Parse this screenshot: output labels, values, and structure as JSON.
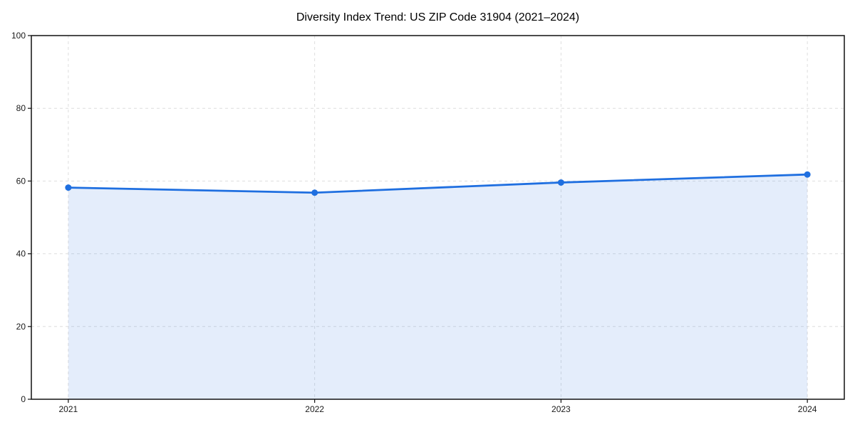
{
  "page": {
    "background": "#ffffff"
  },
  "chart_data": {
    "type": "line",
    "title": "Diversity Index Trend: US ZIP Code 31904 (2021–2024)",
    "x": [
      "2021",
      "2022",
      "2023",
      "2024"
    ],
    "series": [
      {
        "name": "Diversity Index",
        "values": [
          58.2,
          56.8,
          59.6,
          61.8
        ],
        "color": "#1f6fe0",
        "marker": "circle",
        "area_fill": true
      }
    ],
    "xlabel": "",
    "ylabel": "",
    "ylim": [
      0,
      100
    ],
    "yticks": [
      0,
      20,
      40,
      60,
      80,
      100
    ],
    "x_margin_frac": 0.05,
    "grid": true,
    "grid_color": "#dedede",
    "grid_dash": "4 4",
    "legend": "none",
    "area_opacity": 0.12,
    "line_width": 2.8,
    "marker_radius": 4.5,
    "spine_color": "#111111",
    "tick_color": "#111111",
    "tick_label_color": "#1a1a1a"
  }
}
